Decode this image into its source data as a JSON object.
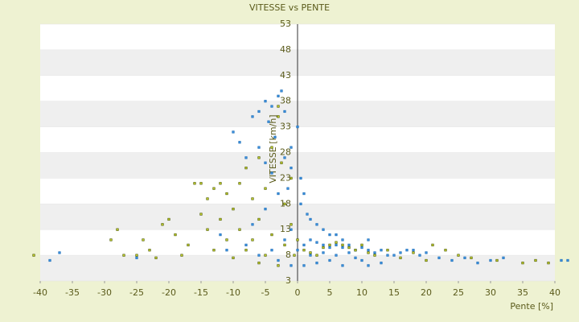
{
  "chart_data": {
    "type": "scatter",
    "title": "VITESSE vs PENTE",
    "x_label": "Pente [%]",
    "y_label": "VITESSE [km/h]",
    "xlim": [
      -40,
      40
    ],
    "xticks": [
      -40,
      -35,
      -30,
      -25,
      -20,
      -15,
      -10,
      -5,
      0,
      5,
      10,
      15,
      20,
      25,
      30,
      35,
      40
    ],
    "ylim": [
      3,
      53
    ],
    "yticks": [
      3,
      8,
      13,
      18,
      23,
      28,
      33,
      38,
      43,
      48,
      53
    ],
    "banded_background": true,
    "series": [
      {
        "color": "#3b8fdc",
        "x": [
          -38.5,
          -37,
          -25,
          -10,
          -9,
          -8,
          -7,
          -6,
          -5,
          -4.5,
          -4,
          -3,
          -2.5,
          -2,
          -3.5,
          -6,
          -5,
          -4,
          -2,
          -1,
          -1,
          0.5,
          1,
          0.5,
          1.5,
          2,
          3,
          4,
          5,
          6,
          7,
          11,
          -1,
          -2,
          0,
          1,
          2,
          3,
          4,
          5,
          6,
          7,
          8,
          9,
          10,
          11,
          12,
          13,
          14,
          15,
          16,
          17,
          18,
          19,
          20,
          22,
          24,
          26,
          28,
          30,
          32,
          -8,
          -6,
          -4,
          -3,
          -1,
          1,
          3,
          5,
          7,
          9,
          11,
          13,
          2,
          4,
          6,
          8,
          10,
          -12,
          -11,
          -7,
          -5,
          -3,
          41,
          42,
          0,
          -1.5
        ],
        "values": [
          7,
          8.5,
          7.5,
          32,
          30,
          27,
          35,
          36,
          38,
          34,
          37,
          39,
          40,
          36,
          31,
          29,
          26,
          24,
          27,
          29,
          25,
          23,
          20,
          18,
          16,
          15,
          14,
          13,
          12,
          12,
          11,
          11,
          13,
          11,
          9,
          10,
          11,
          10.5,
          10,
          9.5,
          10,
          9.5,
          10,
          9,
          9.5,
          9,
          8.5,
          9,
          8,
          8,
          8.5,
          9,
          9,
          8,
          8.5,
          7.5,
          7,
          7.5,
          6.5,
          7,
          7.5,
          10,
          8,
          9,
          7,
          6,
          6,
          6.5,
          7,
          6,
          7.5,
          6,
          6.5,
          8,
          8.5,
          8,
          8.5,
          7,
          12,
          9,
          14,
          17,
          20,
          7,
          7,
          33,
          21
        ]
      },
      {
        "color": "#b9c42a",
        "x": [
          -41,
          -29,
          -28,
          -27,
          -25,
          -24,
          -23,
          -22,
          -21,
          -20,
          -19,
          -18,
          -17,
          -16,
          -15,
          -15,
          -14,
          -14,
          -13,
          -13,
          -12,
          -12,
          -11,
          -11,
          -10,
          -10,
          -9,
          -9,
          -8,
          -8,
          -7,
          -7,
          -6,
          -6,
          -5,
          -5,
          -4,
          -4,
          -3,
          -3,
          -2.5,
          -2,
          -2,
          -1,
          -1,
          -0.5,
          0,
          1,
          2,
          3,
          4,
          5,
          6,
          7,
          8,
          9,
          10,
          11,
          12,
          14,
          16,
          18,
          20,
          21,
          23,
          25,
          27,
          31,
          35,
          37,
          39,
          -6,
          -3
        ],
        "values": [
          8,
          11,
          13,
          8,
          8,
          11,
          9,
          7.5,
          14,
          15,
          12,
          8,
          10,
          22,
          22,
          16,
          13,
          19,
          21,
          9,
          15,
          22,
          20,
          11,
          17,
          7.5,
          22,
          13,
          25,
          9,
          19,
          11,
          27,
          15,
          21,
          8,
          29,
          12,
          35,
          37,
          26,
          18,
          10,
          23,
          14,
          8,
          11,
          9,
          8.5,
          8,
          9.5,
          10,
          10.5,
          10,
          9.5,
          9,
          10,
          8.5,
          8,
          9,
          7.5,
          8.5,
          7,
          10,
          9,
          8,
          7.5,
          7,
          6.5,
          7,
          6.5,
          6.5,
          6
        ]
      }
    ]
  }
}
